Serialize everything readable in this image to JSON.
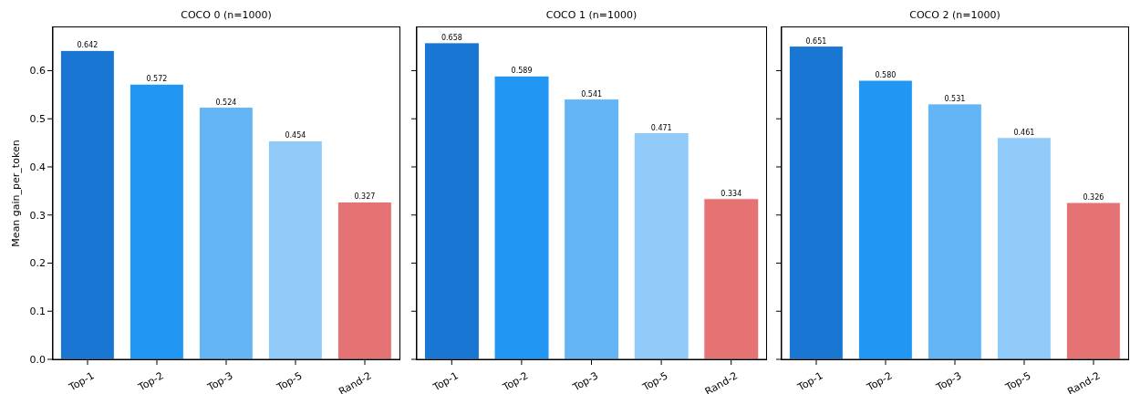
{
  "chart_data": [
    {
      "type": "bar",
      "title": "COCO 0 (n=1000)",
      "ylabel": "Mean gain_per_token",
      "categories": [
        "Top-1",
        "Top-2",
        "Top-3",
        "Top-5",
        "Rand-2"
      ],
      "values": [
        0.642,
        0.572,
        0.524,
        0.454,
        0.327
      ],
      "value_labels": [
        "0.642",
        "0.572",
        "0.524",
        "0.454",
        "0.327"
      ],
      "colors": [
        "#1976d2",
        "#2196f3",
        "#64b5f6",
        "#90caf9",
        "#e57373"
      ],
      "ylim": [
        0,
        0.69
      ],
      "yticks": [
        {
          "value": 0,
          "label": "0.0"
        },
        {
          "value": 0.1,
          "label": "0.1"
        },
        {
          "value": 0.2,
          "label": "0.2"
        },
        {
          "value": 0.3,
          "label": "0.3"
        },
        {
          "value": 0.4,
          "label": "0.4"
        },
        {
          "value": 0.5,
          "label": "0.5"
        },
        {
          "value": 0.6,
          "label": "0.6"
        }
      ]
    },
    {
      "type": "bar",
      "title": "COCO 1 (n=1000)",
      "categories": [
        "Top-1",
        "Top-2",
        "Top-3",
        "Top-5",
        "Rand-2"
      ],
      "values": [
        0.658,
        0.589,
        0.541,
        0.471,
        0.334
      ],
      "value_labels": [
        "0.658",
        "0.589",
        "0.541",
        "0.471",
        "0.334"
      ],
      "colors": [
        "#1976d2",
        "#2196f3",
        "#64b5f6",
        "#90caf9",
        "#e57373"
      ],
      "ylim": [
        0,
        0.69
      ],
      "yticks": [
        {
          "value": 0,
          "label": null
        },
        {
          "value": 0.1,
          "label": null
        },
        {
          "value": 0.2,
          "label": null
        },
        {
          "value": 0.3,
          "label": null
        },
        {
          "value": 0.4,
          "label": null
        },
        {
          "value": 0.5,
          "label": null
        },
        {
          "value": 0.6,
          "label": null
        }
      ],
      "tick_labels": "x"
    },
    {
      "type": "bar",
      "title": "COCO 2 (n=1000)",
      "categories": [
        "Top-1",
        "Top-2",
        "Top-3",
        "Top-5",
        "Rand-2"
      ],
      "values": [
        0.651,
        0.58,
        0.531,
        0.461,
        0.326
      ],
      "value_labels": [
        "0.651",
        "0.580",
        "0.531",
        "0.461",
        "0.326"
      ],
      "colors": [
        "#1976d2",
        "#2196f3",
        "#64b5f6",
        "#90caf9",
        "#e57373"
      ],
      "ylim": [
        0,
        0.69
      ],
      "yticks": [
        {
          "value": 0,
          "label": null
        },
        {
          "value": 0.1,
          "label": null
        },
        {
          "value": 0.2,
          "label": null
        },
        {
          "value": 0.3,
          "label": null
        },
        {
          "value": 0.4,
          "label": null
        },
        {
          "value": 0.5,
          "label": null
        },
        {
          "value": 0.6,
          "label": null
        }
      ],
      "tick_labels": "x"
    }
  ]
}
